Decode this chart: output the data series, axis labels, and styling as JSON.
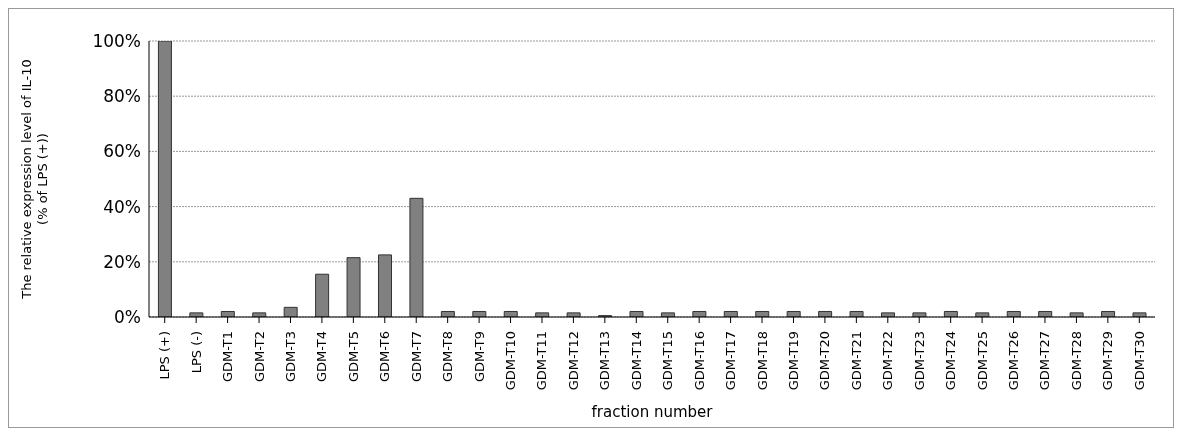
{
  "chart_data": {
    "type": "bar",
    "ylabel": "The relative expression level of IL-10\n(% of LPS (+))",
    "xlabel": "fraction number",
    "categories": [
      "LPS (+)",
      "LPS (-)",
      "GDM-T1",
      "GDM-T2",
      "GDM-T3",
      "GDM-T4",
      "GDM-T5",
      "GDM-T6",
      "GDM-T7",
      "GDM-T8",
      "GDM-T9",
      "GDM-T10",
      "GDM-T11",
      "GDM-T12",
      "GDM-T13",
      "GDM-T14",
      "GDM-T15",
      "GDM-T16",
      "GDM-T17",
      "GDM-T18",
      "GDM-T19",
      "GDM-T20",
      "GDM-T21",
      "GDM-T22",
      "GDM-T23",
      "GDM-T24",
      "GDM-T25",
      "GDM-T26",
      "GDM-T27",
      "GDM-T28",
      "GDM-T29",
      "GDM-T30"
    ],
    "values": [
      100,
      1.5,
      2,
      1.5,
      3.5,
      15.5,
      21.5,
      22.5,
      43,
      2,
      2,
      2,
      1.5,
      1.5,
      0.5,
      2,
      1.5,
      2,
      2,
      2,
      2,
      2,
      2,
      1.5,
      1.5,
      2,
      1.5,
      2,
      2,
      1.5,
      2,
      1.5
    ],
    "color": "#808080",
    "ylim": [
      0,
      100
    ],
    "yticks": [
      {
        "value": 0,
        "label": "0%"
      },
      {
        "value": 20,
        "label": "20%"
      },
      {
        "value": 40,
        "label": "40%"
      },
      {
        "value": 60,
        "label": "60%"
      },
      {
        "value": 80,
        "label": "80%"
      },
      {
        "value": 100,
        "label": "100%"
      }
    ],
    "grid": "y",
    "legend": false
  }
}
